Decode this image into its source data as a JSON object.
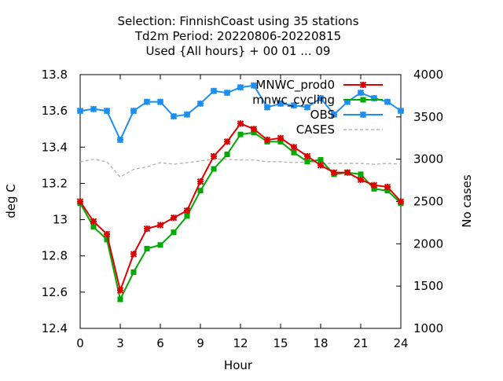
{
  "chart_data": {
    "type": "line",
    "title_lines": [
      "Selection: FinnishCoast using    35 stations",
      "Td2m   Period: 20220806-20220815",
      "Used {All hours} + 00 01 ... 09"
    ],
    "xlabel": "Hour",
    "ylabel": "deg C",
    "y2label": "No cases",
    "xlim": [
      0,
      24
    ],
    "ylim": [
      12.4,
      13.8
    ],
    "y2lim": [
      1000,
      4000
    ],
    "xticks": [
      "0",
      "3",
      "6",
      "9",
      "12",
      "15",
      "18",
      "21",
      "24"
    ],
    "yticks": [
      "12.4",
      "12.6",
      "12.8",
      "13",
      "13.2",
      "13.4",
      "13.6",
      "13.8"
    ],
    "y2ticks": [
      "1000",
      "1500",
      "2000",
      "2500",
      "3000",
      "3500",
      "4000"
    ],
    "grid": false,
    "legend_position": "top-right",
    "x": [
      0,
      1,
      2,
      3,
      4,
      5,
      6,
      7,
      8,
      9,
      10,
      11,
      12,
      13,
      14,
      15,
      16,
      17,
      18,
      19,
      20,
      21,
      22,
      23,
      24
    ],
    "series": [
      {
        "name": "MNWC_prod0",
        "color": "#dd0000",
        "axis": "y",
        "marker": "cross",
        "values": [
          13.1,
          12.99,
          12.92,
          12.61,
          12.81,
          12.95,
          12.97,
          13.01,
          13.05,
          13.21,
          13.35,
          13.43,
          13.53,
          13.5,
          13.44,
          13.45,
          13.4,
          13.35,
          13.3,
          13.26,
          13.26,
          13.22,
          13.19,
          13.18,
          13.1
        ]
      },
      {
        "name": "mnwc_cycling",
        "color": "#00aa00",
        "axis": "y",
        "marker": "square",
        "values": [
          13.09,
          12.96,
          12.89,
          12.56,
          12.71,
          12.84,
          12.86,
          12.93,
          13.02,
          13.16,
          13.28,
          13.36,
          13.47,
          13.48,
          13.43,
          13.43,
          13.37,
          13.32,
          13.33,
          13.25,
          13.26,
          13.25,
          13.17,
          13.16,
          13.09
        ]
      },
      {
        "name": "OBS",
        "color": "#1e8ff0",
        "axis": "y",
        "marker": "cross-square",
        "values": [
          13.6,
          13.61,
          13.6,
          13.44,
          13.6,
          13.65,
          13.65,
          13.57,
          13.58,
          13.64,
          13.71,
          13.7,
          13.73,
          13.74,
          13.62,
          13.64,
          13.63,
          13.62,
          13.67,
          13.58,
          13.65,
          13.7,
          13.67,
          13.65,
          13.6
        ]
      },
      {
        "name": "CASES",
        "color": "#aaaaaa",
        "axis": "y2",
        "dashed": true,
        "values": [
          2970,
          3000,
          2970,
          2790,
          2880,
          2910,
          2960,
          2940,
          2960,
          2980,
          3000,
          3000,
          2990,
          2990,
          2970,
          2970,
          2960,
          2970,
          2950,
          2950,
          2950,
          2950,
          2940,
          2950,
          2940
        ]
      }
    ]
  }
}
